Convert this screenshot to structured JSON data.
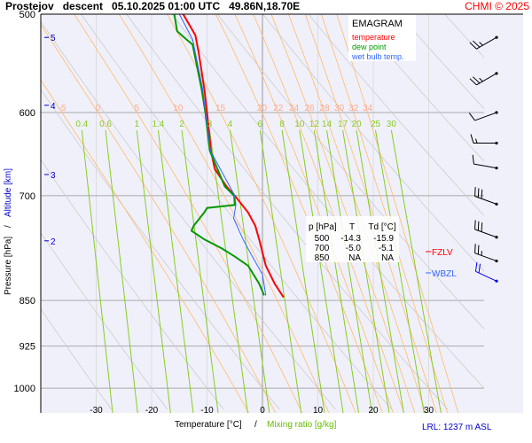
{
  "header": {
    "title": "Prostejov   descent   05.10.2025 01:00 UTC   49.86N,18.70E",
    "copyright": "CHMI © 2025"
  },
  "legend": {
    "title": "EMAGRAM",
    "temperature": "temperature",
    "dew_point": "dew point",
    "wet_bulb": "wet bulb temp."
  },
  "table": {
    "headers": [
      "p [hPa]",
      "T",
      "Td [°C]"
    ],
    "rows": [
      [
        "500",
        "-14.3",
        "-15.9"
      ],
      [
        "700",
        "-5.0",
        "-5.1"
      ],
      [
        "850",
        "NA",
        "NA"
      ]
    ]
  },
  "levels": {
    "fzlv": "FZLV",
    "wbzl": "WBZL"
  },
  "footer": {
    "xlabel_temp": "Temperature [°C]",
    "sep": "/",
    "xlabel_mix": "Mixing ratio [g/kg]",
    "lrl": "LRL: 1237 m ASL"
  },
  "yaxis": {
    "pressure_label": "Pressure [hPa]",
    "sep": "/",
    "altitude_label": "Altitude [km]"
  },
  "colors": {
    "temperature": "#ff0000",
    "dew_point": "#009900",
    "wet_bulb": "#3366ff",
    "bg": "#f0f0fb",
    "mix": "#88cc22",
    "moist": "#ffbb66",
    "dry": "#cccccc",
    "altitude": "#0000cc"
  },
  "chart_data": {
    "type": "line",
    "title": "Prostejov descent 05.10.2025 01:00 UTC 49.86N,18.70E",
    "xlabel": "Temperature [°C] / Mixing ratio [g/kg]",
    "ylabel": "Pressure [hPa] / Altitude [km]",
    "xlim": [
      -40,
      40
    ],
    "ylim_hpa": [
      500,
      1047
    ],
    "x_ticks": [
      -30,
      -20,
      -10,
      0,
      10,
      20,
      30
    ],
    "p_ticks": [
      500,
      600,
      700,
      850,
      925,
      1000
    ],
    "altitude_ticks": [
      {
        "km": "5",
        "p": 522
      },
      {
        "km": "4",
        "p": 592
      },
      {
        "km": "3",
        "p": 673
      },
      {
        "km": "2",
        "p": 761
      }
    ],
    "mixing_ratio_labels": [
      "0.4",
      "0.6",
      "1",
      "1.4",
      "2",
      "3",
      "4",
      "6",
      "8",
      "10",
      "12",
      "14",
      "17",
      "20",
      "25",
      "30"
    ],
    "moist_adiabat_labels": [
      "-5",
      "0",
      "5",
      "10",
      "15",
      "20",
      "22",
      "24",
      "26",
      "28",
      "30",
      "32",
      "34"
    ],
    "series": [
      {
        "name": "temperature",
        "points": [
          [
            500,
            -14.3
          ],
          [
            520,
            -12.1
          ],
          [
            537,
            -11.5
          ],
          [
            574,
            -10.5
          ],
          [
            600,
            -10.0
          ],
          [
            644,
            -9.3
          ],
          [
            666,
            -8.6
          ],
          [
            688,
            -6.5
          ],
          [
            700,
            -5.0
          ],
          [
            722,
            -2.6
          ],
          [
            740,
            -1.3
          ],
          [
            759,
            -0.6
          ],
          [
            797,
            0.6
          ],
          [
            824,
            2.2
          ],
          [
            845,
            3.8
          ]
        ]
      },
      {
        "name": "dew point",
        "points": [
          [
            500,
            -15.9
          ],
          [
            516,
            -15.4
          ],
          [
            524,
            -13.7
          ],
          [
            529,
            -12.6
          ],
          [
            574,
            -11.0
          ],
          [
            600,
            -10.3
          ],
          [
            644,
            -9.5
          ],
          [
            688,
            -6.8
          ],
          [
            700,
            -5.1
          ],
          [
            712,
            -5.0
          ],
          [
            716,
            -10.0
          ],
          [
            722,
            -10.5
          ],
          [
            740,
            -12.4
          ],
          [
            747,
            -12.8
          ],
          [
            759,
            -10.5
          ],
          [
            772,
            -7.3
          ],
          [
            784,
            -4.9
          ],
          [
            797,
            -2.6
          ],
          [
            824,
            -0.6
          ],
          [
            842,
            0.3
          ]
        ]
      },
      {
        "name": "wet bulb temp.",
        "points": [
          [
            500,
            -15.0
          ],
          [
            524,
            -12.6
          ],
          [
            574,
            -10.8
          ],
          [
            644,
            -9.4
          ],
          [
            700,
            -5.0
          ],
          [
            712,
            -4.8
          ],
          [
            730,
            -5.2
          ],
          [
            759,
            -3.5
          ],
          [
            784,
            -1.8
          ],
          [
            810,
            0.0
          ],
          [
            842,
            0.6
          ]
        ]
      }
    ],
    "wind_barbs": [
      {
        "p": 522,
        "dir": 240,
        "kt": 25
      },
      {
        "p": 558,
        "dir": 240,
        "kt": 25
      },
      {
        "p": 600,
        "dir": 250,
        "kt": 10
      },
      {
        "p": 635,
        "dir": 270,
        "kt": 15
      },
      {
        "p": 665,
        "dir": 280,
        "kt": 10
      },
      {
        "p": 711,
        "dir": 290,
        "kt": 30
      },
      {
        "p": 756,
        "dir": 290,
        "kt": 30
      },
      {
        "p": 790,
        "dir": 290,
        "kt": 25
      },
      {
        "p": 820,
        "dir": 295,
        "kt": 20
      }
    ]
  }
}
